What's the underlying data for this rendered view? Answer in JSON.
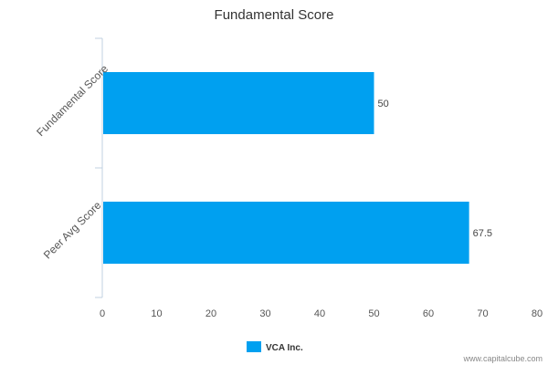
{
  "chart_data": {
    "type": "bar",
    "orientation": "horizontal",
    "title": "Fundamental Score",
    "categories": [
      "Fundamental Score",
      "Peer Avg Score"
    ],
    "series": [
      {
        "name": "VCA Inc.",
        "values": [
          50,
          67.5
        ],
        "color": "#00A0F0"
      }
    ],
    "xlim": [
      0,
      80
    ],
    "xticks": [
      "0",
      "10",
      "20",
      "30",
      "40",
      "50",
      "60",
      "70",
      "80"
    ],
    "data_labels": [
      "50",
      "67.5"
    ],
    "grid": false,
    "legend_position": "bottom"
  },
  "watermark": "www.capitalcube.com"
}
